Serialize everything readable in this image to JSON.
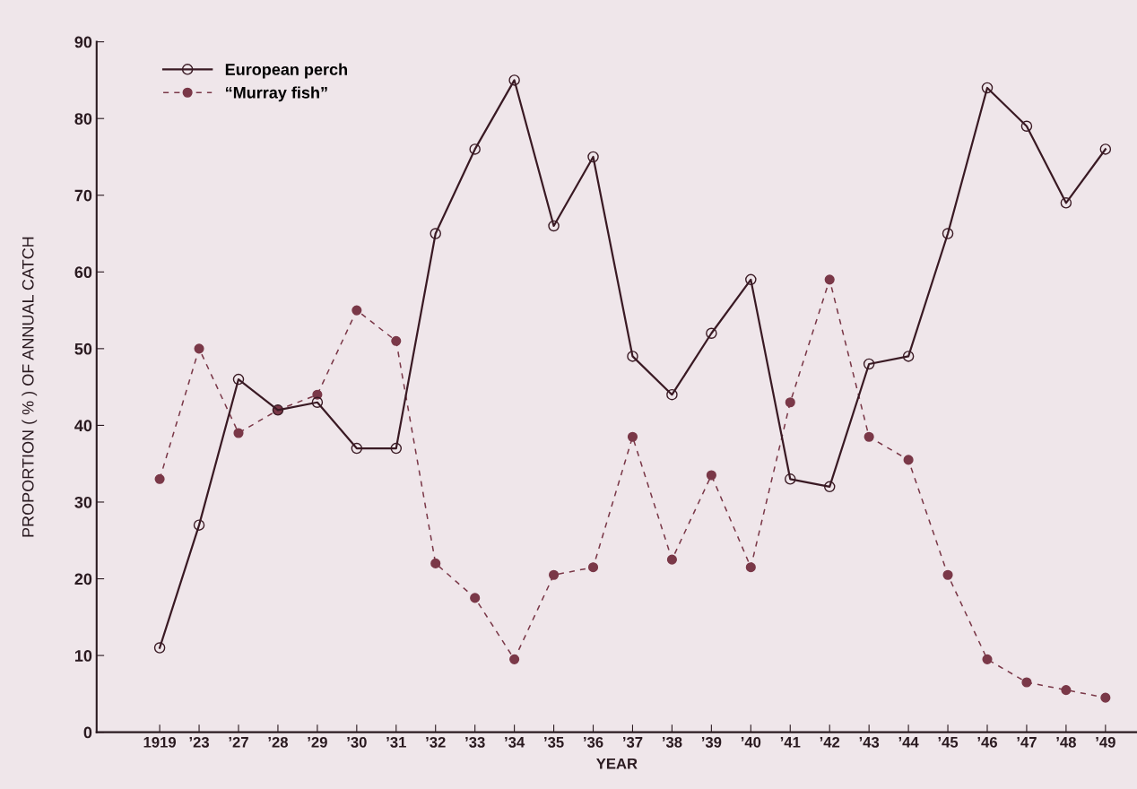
{
  "chart_data": {
    "type": "line",
    "xlabel": "YEAR",
    "ylabel": "PROPORTION ( % ) OF ANNUAL CATCH",
    "categories": [
      "1919",
      "’23",
      "’27",
      "’28",
      "’29",
      "’30",
      "’31",
      "’32",
      "’33",
      "’34",
      "’35",
      "’36",
      "’37",
      "’38",
      "’39",
      "’40",
      "’41",
      "’42",
      "’43",
      "’44",
      "’45",
      "’46",
      "’47",
      "’48",
      "’49"
    ],
    "series": [
      {
        "name": "European perch",
        "color": "#3a1a24",
        "marker": "circle",
        "line_style": "solid",
        "values": [
          11,
          27,
          46,
          42,
          43,
          37,
          37,
          65,
          76,
          85,
          66,
          75,
          49,
          44,
          52,
          59,
          33,
          32,
          48,
          49,
          65,
          84,
          79,
          69,
          76
        ]
      },
      {
        "name": "“Murray fish”",
        "color": "#7a3848",
        "marker": "circle",
        "line_style": "dashed",
        "values": [
          33,
          50,
          39,
          42,
          44,
          55,
          51,
          22,
          17.5,
          9.5,
          20.5,
          21.5,
          38.5,
          22.5,
          33.5,
          21.5,
          43,
          59,
          38.5,
          35.5,
          20.5,
          9.5,
          6.5,
          5.5,
          4.5
        ]
      }
    ],
    "ylim": [
      0,
      90
    ],
    "yticks": [
      0,
      10,
      20,
      30,
      40,
      50,
      60,
      70,
      80,
      90
    ],
    "grid": false,
    "legend": "top left"
  }
}
